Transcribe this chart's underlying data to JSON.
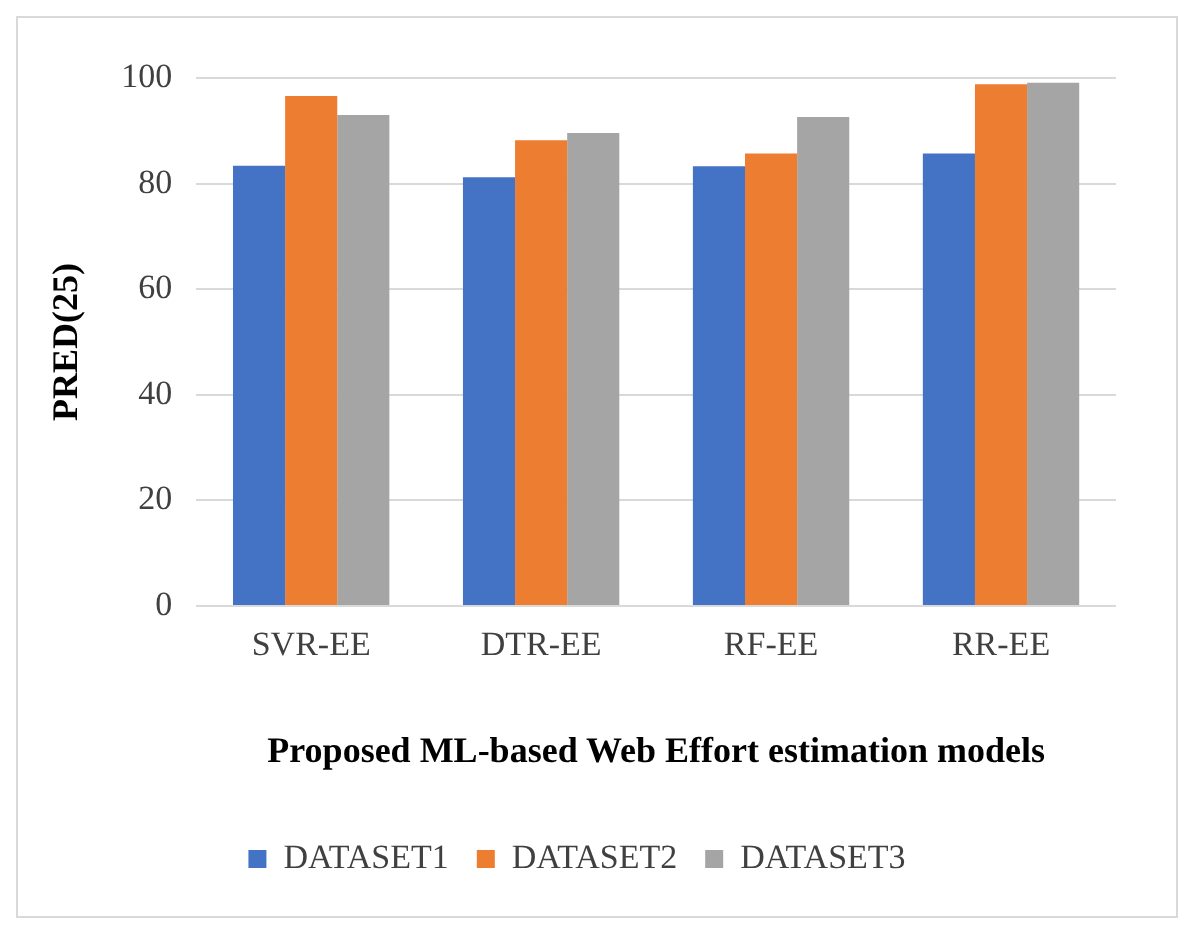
{
  "chart_data": {
    "type": "bar",
    "xlabel": "Proposed ML-based Web Effort estimation models",
    "ylabel": "PRED(25)",
    "categories": [
      "SVR-EE",
      "DTR-EE",
      "RF-EE",
      "RR-EE"
    ],
    "series": [
      {
        "name": "DATASET1",
        "color": "#4472c4",
        "values": [
          83.4,
          81.2,
          83.3,
          85.7
        ]
      },
      {
        "name": "DATASET2",
        "color": "#ed7d31",
        "values": [
          96.6,
          88.2,
          85.7,
          98.8
        ]
      },
      {
        "name": "DATASET3",
        "color": "#a5a5a5",
        "values": [
          93,
          89.6,
          92.6,
          99.1
        ]
      }
    ],
    "ylim": [
      0,
      100
    ],
    "yticks": [
      0,
      20,
      40,
      60,
      80,
      100
    ],
    "grid": "y",
    "legend": "bottom"
  }
}
